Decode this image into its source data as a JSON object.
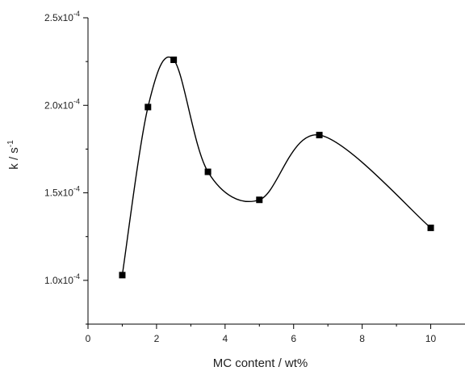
{
  "chart_data": {
    "type": "scatter",
    "title": "",
    "xlabel": "MC content / wt%",
    "ylabel": "k / s",
    "ylabel_sup": "-1",
    "xlim": [
      0,
      11
    ],
    "ylim": [
      7.5e-05,
      0.00025
    ],
    "x_ticks": [
      0,
      2,
      4,
      6,
      8,
      10
    ],
    "x_minor_ticks": [
      1,
      3,
      5,
      7,
      9
    ],
    "y_ticks": [
      {
        "value": 0.0001,
        "mantissa": "1.0x10",
        "exponent": "-4"
      },
      {
        "value": 0.00015,
        "mantissa": "1.5x10",
        "exponent": "-4"
      },
      {
        "value": 0.0002,
        "mantissa": "2.0x10",
        "exponent": "-4"
      },
      {
        "value": 0.00025,
        "mantissa": "2.5x10",
        "exponent": "-4"
      }
    ],
    "series": [
      {
        "x": [
          1.0,
          1.75,
          2.5,
          3.5,
          5.0,
          6.75,
          10.0
        ],
        "y": [
          0.000103,
          0.000199,
          0.000226,
          0.000162,
          0.000146,
          0.000183,
          0.00013
        ],
        "marker": "square",
        "line": "spline",
        "color": "#000000"
      }
    ],
    "grid": false,
    "legend": "none"
  }
}
